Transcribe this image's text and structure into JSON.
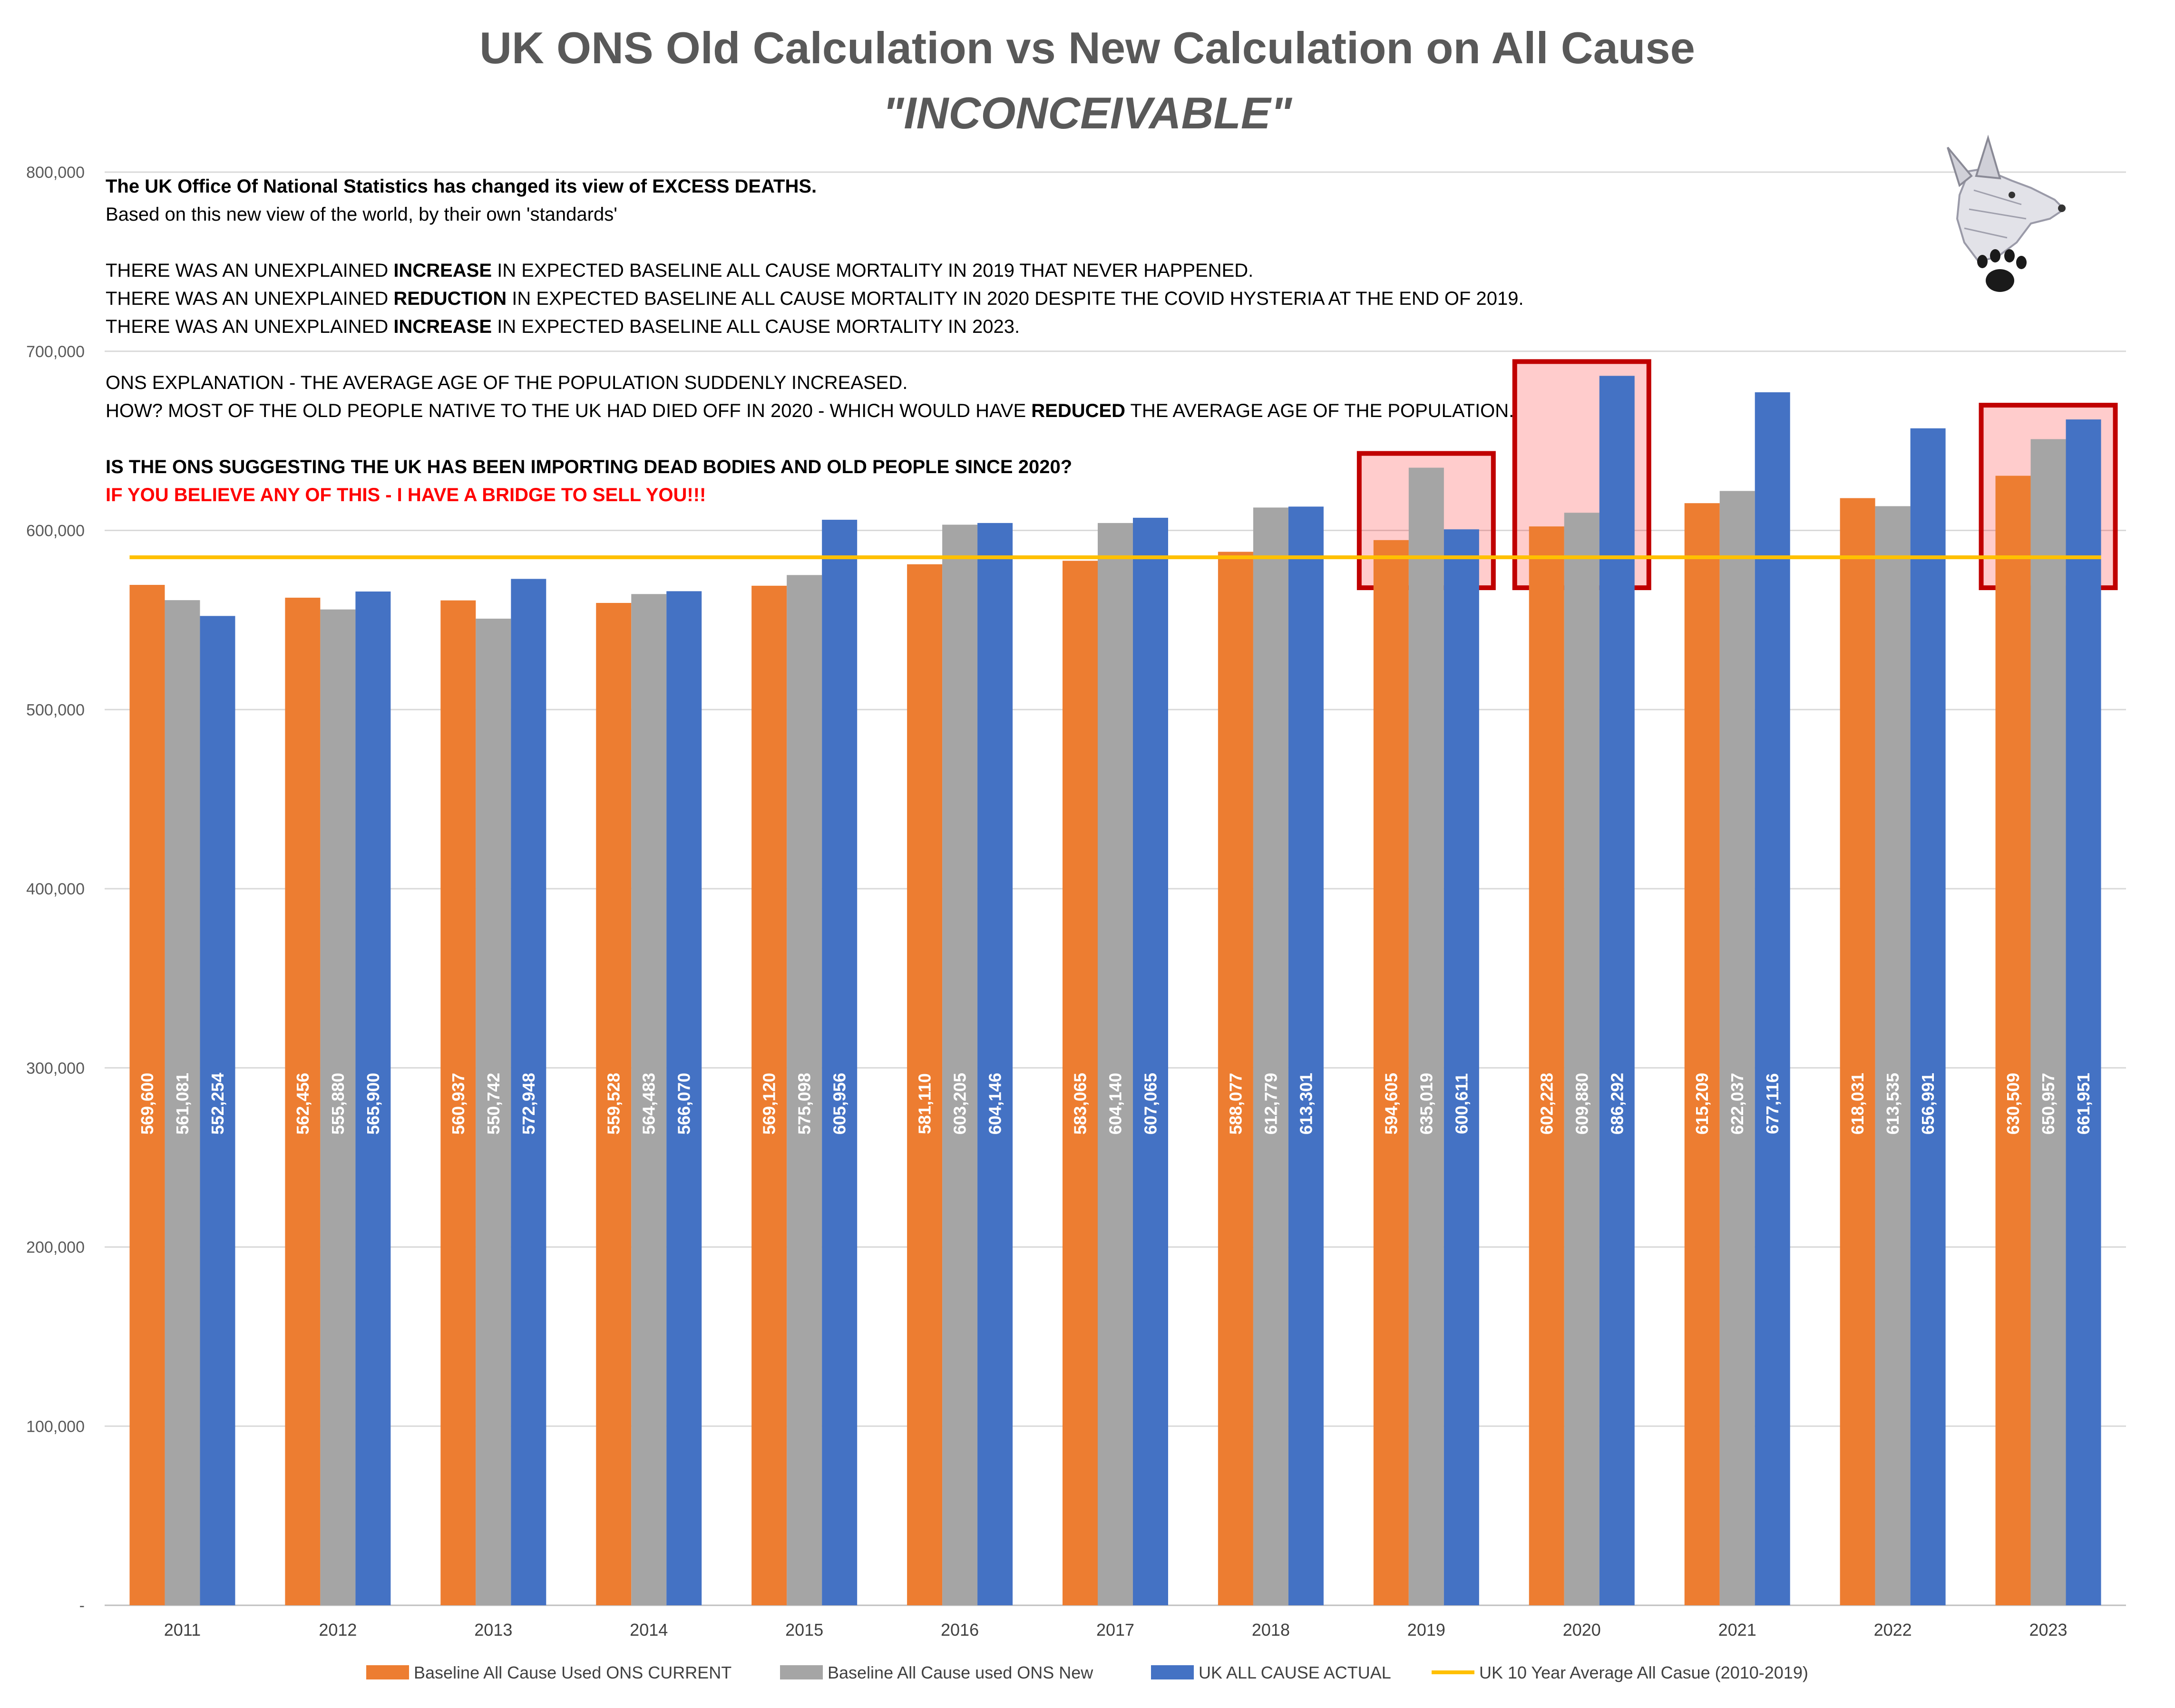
{
  "chart_data": {
    "type": "bar",
    "title": "UK ONS Old Calculation vs New Calculation on All Cause",
    "subtitle": "\"INCONCEIVABLE\"",
    "categories": [
      "2011",
      "2012",
      "2013",
      "2014",
      "2015",
      "2016",
      "2017",
      "2018",
      "2019",
      "2020",
      "2021",
      "2022",
      "2023"
    ],
    "series": [
      {
        "name": "Baseline All Cause Used ONS CURRENT",
        "color": "#ED7D31",
        "values": [
          569600,
          562456,
          560937,
          559528,
          569120,
          581110,
          583065,
          588077,
          594605,
          602228,
          615209,
          618031,
          630509
        ],
        "labels": [
          "569,600",
          "562,456",
          "560,937",
          "559,528",
          "569,120",
          "581,110",
          "583,065",
          "588,077",
          "594,605",
          "602,228",
          "615,209",
          "618,031",
          "630,509"
        ]
      },
      {
        "name": "Baseline All Cause used ONS New",
        "color": "#A5A5A5",
        "values": [
          561081,
          555880,
          550742,
          564483,
          575098,
          603205,
          604140,
          612779,
          635019,
          609880,
          622037,
          613535,
          650957
        ],
        "labels": [
          "561,081",
          "555,880",
          "550,742",
          "564,483",
          "575,098",
          "603,205",
          "604,140",
          "612,779",
          "635,019",
          "609,880",
          "622,037",
          "613,535",
          "650,957"
        ]
      },
      {
        "name": "UK ALL CAUSE ACTUAL",
        "color": "#4472C4",
        "values": [
          552254,
          565900,
          572948,
          566070,
          605956,
          604146,
          607065,
          613301,
          600611,
          686292,
          677116,
          656991,
          661951
        ],
        "labels": [
          "552,254",
          "565,900",
          "572,948",
          "566,070",
          "605,956",
          "604,146",
          "607,065",
          "613,301",
          "600,611",
          "686,292",
          "677,116",
          "656,991",
          "661,951"
        ]
      }
    ],
    "line_series": {
      "name": "UK 10 Year Average All Casue (2010-2019)",
      "color": "#FFC000",
      "value": 585000
    },
    "ylim": [
      0,
      800000
    ],
    "yticks": [
      {
        "value": 0,
        "label": "-"
      },
      {
        "value": 100000,
        "label": "100,000"
      },
      {
        "value": 200000,
        "label": "200,000"
      },
      {
        "value": 300000,
        "label": "300,000"
      },
      {
        "value": 400000,
        "label": "400,000"
      },
      {
        "value": 500000,
        "label": "500,000"
      },
      {
        "value": 600000,
        "label": "600,000"
      },
      {
        "value": 700000,
        "label": "700,000"
      },
      {
        "value": 800000,
        "label": "800,000"
      }
    ],
    "grid": true,
    "legend_position": "bottom",
    "highlighted_categories": [
      "2019",
      "2020",
      "2023"
    ],
    "highlight_color": "#C00000",
    "annotation_lines": [
      [
        {
          "t": "The UK Office Of National Statistics has changed its view of EXCESS DEATHS.",
          "b": true
        }
      ],
      [
        {
          "t": "Based on this new view of the world, by their own 'standards'",
          "b": false
        }
      ],
      [],
      [
        {
          "t": "THERE WAS AN UNEXPLAINED ",
          "b": false
        },
        {
          "t": "INCREASE",
          "b": true
        },
        {
          "t": " IN EXPECTED BASELINE ALL CAUSE MORTALITY IN 2019 THAT NEVER HAPPENED.",
          "b": false
        }
      ],
      [
        {
          "t": "THERE WAS AN UNEXPLAINED ",
          "b": false
        },
        {
          "t": "REDUCTION",
          "b": true
        },
        {
          "t": " IN EXPECTED BASELINE ALL CAUSE MORTALITY IN 2020 DESPITE THE COVID HYSTERIA AT THE END OF 2019.",
          "b": false
        }
      ],
      [
        {
          "t": "THERE WAS AN UNEXPLAINED ",
          "b": false
        },
        {
          "t": "INCREASE",
          "b": true
        },
        {
          "t": " IN EXPECTED BASELINE ALL CAUSE MORTALITY IN 2023.",
          "b": false
        }
      ],
      [],
      [
        {
          "t": "ONS EXPLANATION - THE AVERAGE AGE  OF THE POPULATION SUDDENLY INCREASED.",
          "b": false
        }
      ],
      [
        {
          "t": "HOW? MOST OF THE OLD PEOPLE NATIVE TO THE UK HAD DIED OFF IN 2020 - WHICH WOULD HAVE ",
          "b": false
        },
        {
          "t": "REDUCED",
          "b": true
        },
        {
          "t": " THE AVERAGE AGE OF THE POPULATION.",
          "b": false
        }
      ],
      [],
      [
        {
          "t": "IS THE ONS SUGGESTING THE UK HAS BEEN IMPORTING DEAD BODIES AND OLD PEOPLE SINCE 2020?",
          "b": true
        }
      ],
      [
        {
          "t": "IF YOU BELIEVE ANY OF THIS - I HAVE A BRIDGE TO SELL YOU!!!",
          "b": true,
          "color": "#FF0000"
        }
      ]
    ]
  },
  "colors": {
    "title": "#595959",
    "grid": "#D9D9D9",
    "axis": "#BFBFBF"
  },
  "icons": {
    "logo": "wolf-head-paw-logo"
  }
}
